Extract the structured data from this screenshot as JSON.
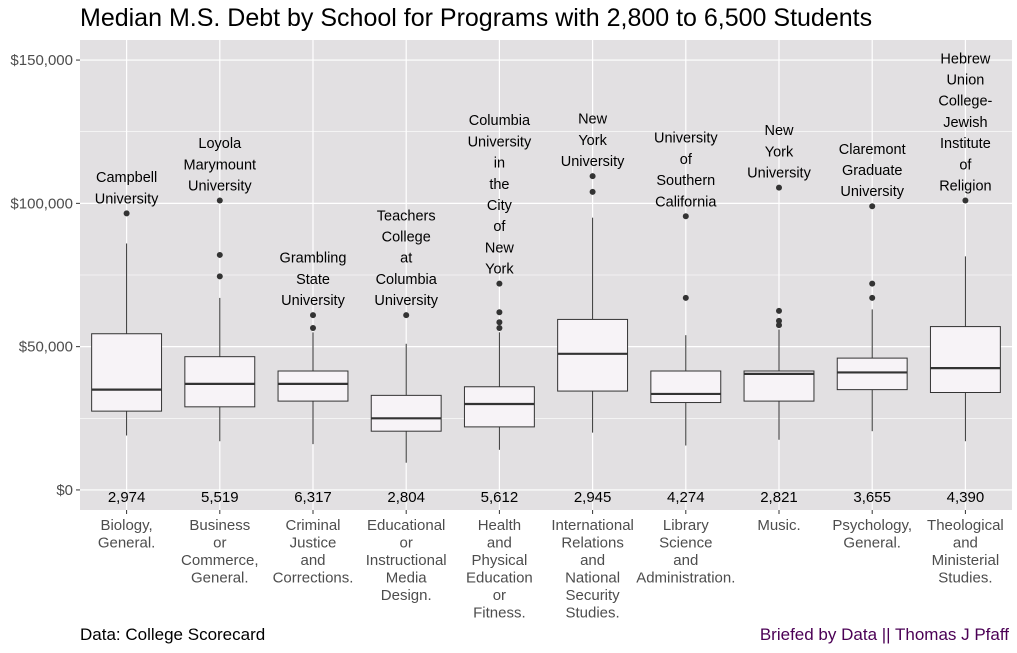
{
  "chart_data": {
    "type": "boxplot",
    "title": "Median M.S. Debt by School for Programs with 2,800 to 6,500 Students",
    "xlabel": "",
    "ylabel": "",
    "ylim": [
      -7000,
      157000
    ],
    "yticks": [
      0,
      50000,
      100000,
      150000
    ],
    "ytick_labels": [
      "$0",
      "$50,000",
      "$100,000",
      "$150,000"
    ],
    "grid": true,
    "categories": [
      {
        "label_lines": [
          "Biology,",
          "General."
        ],
        "count": "2,974",
        "top_school_lines": [
          "Campbell",
          "University"
        ],
        "whisker_low": 19000,
        "q1": 27500,
        "median": 35000,
        "q3": 54500,
        "whisker_high": 86000,
        "outliers": [
          96500
        ]
      },
      {
        "label_lines": [
          "Business",
          "or",
          "Commerce,",
          "General."
        ],
        "count": "5,519",
        "top_school_lines": [
          "Loyola",
          "Marymount",
          "University"
        ],
        "whisker_low": 17000,
        "q1": 29000,
        "median": 37000,
        "q3": 46500,
        "whisker_high": 67000,
        "outliers": [
          74500,
          82000,
          101000
        ]
      },
      {
        "label_lines": [
          "Criminal",
          "Justice",
          "and",
          "Corrections."
        ],
        "count": "6,317",
        "top_school_lines": [
          "Grambling",
          "State",
          "University"
        ],
        "whisker_low": 16000,
        "q1": 31000,
        "median": 37000,
        "q3": 41500,
        "whisker_high": 55000,
        "outliers": [
          56500,
          61000
        ]
      },
      {
        "label_lines": [
          "Educational",
          "or",
          "Instructional",
          "Media",
          "Design."
        ],
        "count": "2,804",
        "top_school_lines": [
          "Teachers",
          "College",
          "at",
          "Columbia",
          "University"
        ],
        "whisker_low": 9500,
        "q1": 20500,
        "median": 25000,
        "q3": 33000,
        "whisker_high": 51000,
        "outliers": [
          61000
        ]
      },
      {
        "label_lines": [
          "Health",
          "and",
          "Physical",
          "Education",
          "or",
          "Fitness."
        ],
        "count": "5,612",
        "top_school_lines": [
          "Columbia",
          "University",
          "in",
          "the",
          "City",
          "of",
          "New",
          "York"
        ],
        "whisker_low": 14000,
        "q1": 22000,
        "median": 30000,
        "q3": 36000,
        "whisker_high": 55000,
        "outliers": [
          56500,
          58500,
          62000,
          72000
        ]
      },
      {
        "label_lines": [
          "International",
          "Relations",
          "and",
          "National",
          "Security",
          "Studies."
        ],
        "count": "2,945",
        "top_school_lines": [
          "New",
          "York",
          "University"
        ],
        "whisker_low": 20000,
        "q1": 34500,
        "median": 47500,
        "q3": 59500,
        "whisker_high": 95000,
        "outliers": [
          104000,
          109500
        ]
      },
      {
        "label_lines": [
          "Library",
          "Science",
          "and",
          "Administration."
        ],
        "count": "4,274",
        "top_school_lines": [
          "University",
          "of",
          "Southern",
          "California"
        ],
        "whisker_low": 15500,
        "q1": 30500,
        "median": 33500,
        "q3": 41500,
        "whisker_high": 54000,
        "outliers": [
          67000,
          95500
        ]
      },
      {
        "label_lines": [
          "Music."
        ],
        "count": "2,821",
        "top_school_lines": [
          "New",
          "York",
          "University"
        ],
        "whisker_low": 17500,
        "q1": 31000,
        "median": 40500,
        "q3": 41500,
        "whisker_high": 56000,
        "outliers": [
          57500,
          59000,
          62500,
          105500
        ]
      },
      {
        "label_lines": [
          "Psychology,",
          "General."
        ],
        "count": "3,655",
        "top_school_lines": [
          "Claremont",
          "Graduate",
          "University"
        ],
        "whisker_low": 20500,
        "q1": 35000,
        "median": 41000,
        "q3": 46000,
        "whisker_high": 63000,
        "outliers": [
          67000,
          72000,
          99000
        ]
      },
      {
        "label_lines": [
          "Theological",
          "and",
          "Ministerial",
          "Studies."
        ],
        "count": "4,390",
        "top_school_lines": [
          "Hebrew",
          "Union",
          "College-",
          "Jewish",
          "Institute",
          "of",
          "Religion"
        ],
        "whisker_low": 17000,
        "q1": 34000,
        "median": 42500,
        "q3": 57000,
        "whisker_high": 81500,
        "outliers": [
          101000
        ]
      }
    ]
  },
  "captions": {
    "source": "Data: College Scorecard",
    "credit": "Briefed by Data || Thomas J Pfaff"
  },
  "colors": {
    "panel": "#e2e0e2",
    "grid": "#ffffff",
    "box_fill": "#f7f3f7",
    "box_stroke": "#333333",
    "outlier": "#333333",
    "credit": "#4b0055"
  }
}
